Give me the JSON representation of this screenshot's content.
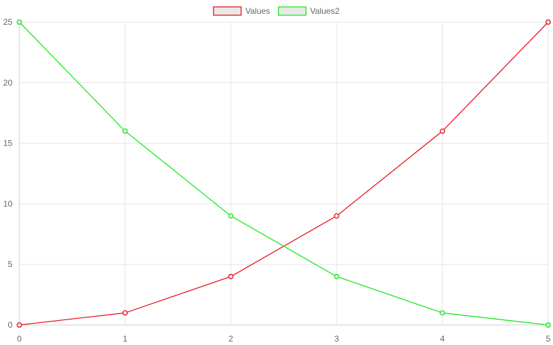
{
  "chart_data": {
    "type": "line",
    "x": [
      0,
      1,
      2,
      3,
      4,
      5
    ],
    "xlim": [
      0,
      5
    ],
    "ylim": [
      0,
      25
    ],
    "yticks": [
      0,
      5,
      10,
      15,
      20,
      25
    ],
    "xticks": [
      0,
      1,
      2,
      3,
      4,
      5
    ],
    "grid": true,
    "legend_position": "top-center",
    "series": [
      {
        "name": "Values",
        "values": [
          0,
          1,
          4,
          9,
          16,
          25
        ],
        "color": "#e8141c",
        "marker_fill": "#e8e8e8"
      },
      {
        "name": "Values2",
        "values": [
          25,
          16,
          9,
          4,
          1,
          0
        ],
        "color": "#1ee81e",
        "marker_fill": "#e8e8e8"
      }
    ]
  }
}
